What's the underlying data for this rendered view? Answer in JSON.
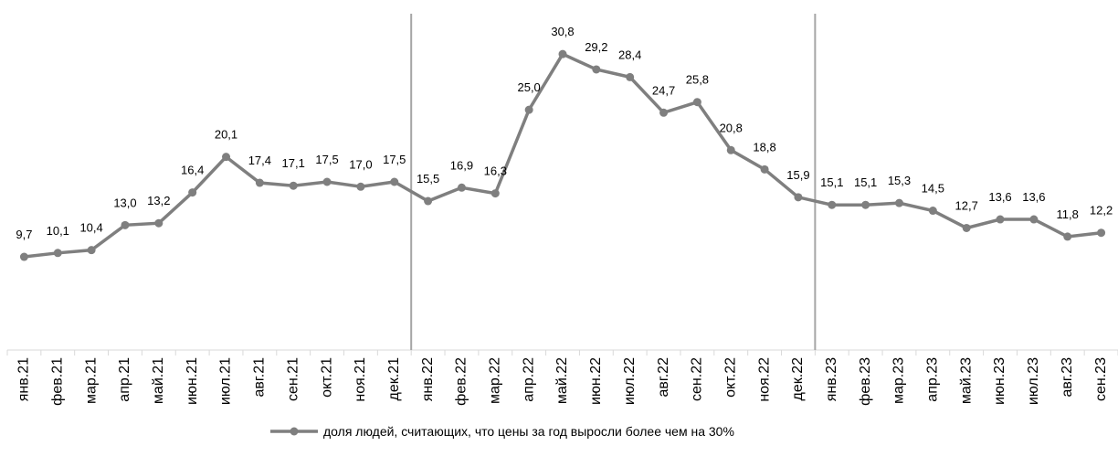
{
  "chart_data": {
    "type": "line",
    "categories": [
      "янв.21",
      "фев.21",
      "мар.21",
      "апр.21",
      "май.21",
      "июн.21",
      "июл.21",
      "авг.21",
      "сен.21",
      "окт.21",
      "ноя.21",
      "дек.21",
      "янв.22",
      "фев.22",
      "мар.22",
      "апр.22",
      "май.22",
      "июн.22",
      "июл.22",
      "авг.22",
      "сен.22",
      "окт.22",
      "ноя.22",
      "дек.22",
      "янв.23",
      "фев.23",
      "мар.23",
      "апр.23",
      "май.23",
      "июн.23",
      "июл.23",
      "авг.23",
      "сен.23"
    ],
    "series": [
      {
        "name": "доля людей, считающих, что цены за год выросли более чем на 30%",
        "color": "#7f7f7f",
        "values": [
          9.7,
          10.1,
          10.4,
          13.0,
          13.2,
          16.4,
          20.1,
          17.4,
          17.1,
          17.5,
          17.0,
          17.5,
          15.5,
          16.9,
          16.3,
          25.0,
          30.8,
          29.2,
          28.4,
          24.7,
          25.8,
          20.8,
          18.8,
          15.9,
          15.1,
          15.1,
          15.3,
          14.5,
          12.7,
          13.6,
          13.6,
          11.8,
          12.2
        ],
        "value_labels": [
          "9,7",
          "10,1",
          "10,4",
          "13,0",
          "13,2",
          "16,4",
          "20,1",
          "17,4",
          "17,1",
          "17,5",
          "17,0",
          "17,5",
          "15,5",
          "16,9",
          "16,3",
          "25,0",
          "30,8",
          "29,2",
          "28,4",
          "24,7",
          "25,8",
          "20,8",
          "18,8",
          "15,9",
          "15,1",
          "15,1",
          "15,3",
          "14,5",
          "12,7",
          "13,6",
          "13,6",
          "11,8",
          "12,2"
        ]
      }
    ],
    "ylim": [
      0,
      35
    ],
    "legend": "bottom"
  }
}
